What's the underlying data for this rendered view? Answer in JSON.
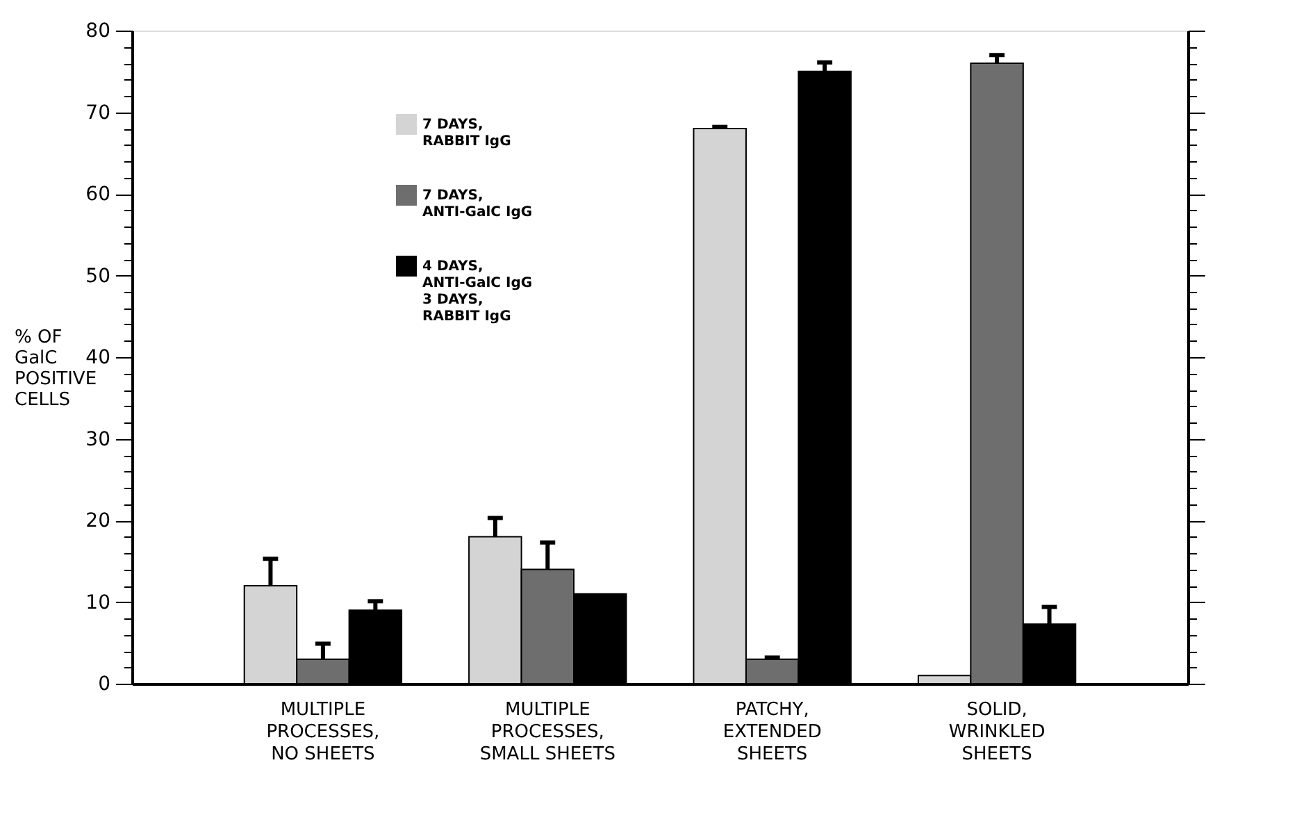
{
  "chart_data": {
    "type": "bar",
    "ylabel": "% OF\nGalC\nPOSITIVE\nCELLS",
    "categories": [
      "MULTIPLE\nPROCESSES,\nNO SHEETS",
      "MULTIPLE\nPROCESSES,\nSMALL SHEETS",
      "PATCHY,\nEXTENDED\nSHEETS",
      "SOLID,\nWRINKLED\nSHEETS"
    ],
    "series": [
      {
        "name": "7 DAYS,\nRABBIT IgG",
        "color": "#d4d4d4",
        "values": [
          12,
          18,
          68,
          1
        ],
        "errors": [
          [
            12,
            15.3
          ],
          [
            18,
            20.3
          ],
          [
            68,
            68.2
          ],
          null
        ]
      },
      {
        "name": "7 DAYS,\nANTI-GalC IgG",
        "color": "#6e6e6e",
        "values": [
          3,
          14,
          3,
          76
        ],
        "errors": [
          [
            3,
            4.9
          ],
          [
            14,
            17.3
          ],
          [
            3,
            3.2
          ],
          [
            76,
            77
          ]
        ]
      },
      {
        "name": "4 DAYS,\nANTI-GalC IgG\n3 DAYS,\nRABBIT IgG",
        "color": "#000000",
        "values": [
          9,
          11,
          75,
          7.3
        ],
        "errors": [
          [
            9,
            10.1
          ],
          null,
          [
            75,
            76.1
          ],
          [
            7.3,
            9.4
          ]
        ]
      }
    ],
    "ylim": [
      0,
      80
    ],
    "yticks": [
      0,
      {
        "value": 2,
        "label": null
      },
      {
        "value": 4,
        "label": null
      },
      {
        "value": 6,
        "label": null
      },
      {
        "value": 8,
        "label": null
      },
      10,
      {
        "value": 12,
        "label": null
      },
      {
        "value": 14,
        "label": null
      },
      {
        "value": 16,
        "label": null
      },
      {
        "value": 18,
        "label": null
      },
      20,
      {
        "value": 22,
        "label": null
      },
      {
        "value": 24,
        "label": null
      },
      {
        "value": 26,
        "label": null
      },
      {
        "value": 28,
        "label": null
      },
      30,
      {
        "value": 32,
        "label": null
      },
      {
        "value": 34,
        "label": null
      },
      {
        "value": 36,
        "label": null
      },
      {
        "value": 38,
        "label": null
      },
      40,
      {
        "value": 42,
        "label": null
      },
      {
        "value": 44,
        "label": null
      },
      {
        "value": 46,
        "label": null
      },
      {
        "value": 48,
        "label": null
      },
      50,
      {
        "value": 52,
        "label": null
      },
      {
        "value": 54,
        "label": null
      },
      {
        "value": 56,
        "label": null
      },
      {
        "value": 58,
        "label": null
      },
      60,
      {
        "value": 62,
        "label": null
      },
      {
        "value": 64,
        "label": null
      },
      {
        "value": 66,
        "label": null
      },
      {
        "value": 68,
        "label": null
      },
      70,
      {
        "value": 72,
        "label": null
      },
      {
        "value": 74,
        "label": null
      },
      {
        "value": 76,
        "label": null
      },
      {
        "value": 78,
        "label": null
      },
      80
    ],
    "grid": false,
    "legend": "top left"
  }
}
